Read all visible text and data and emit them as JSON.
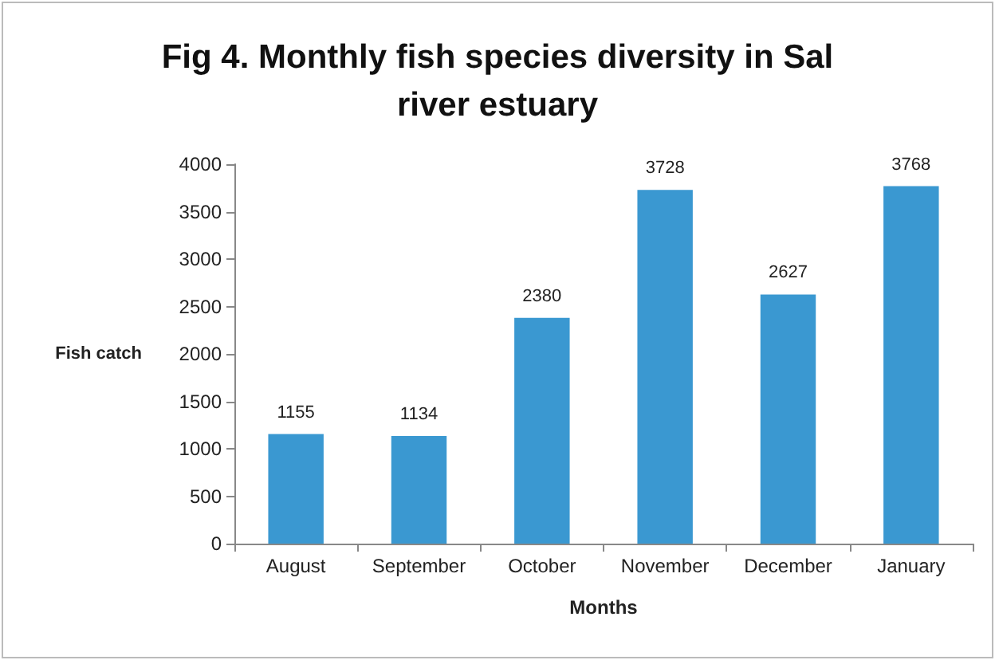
{
  "chart_data": {
    "type": "bar",
    "title": "Fig 4. Monthly fish species diversity in Sal\nriver estuary",
    "xlabel": "Months",
    "ylabel": "Fish catch",
    "categories": [
      "August",
      "September",
      "October",
      "November",
      "December",
      "January"
    ],
    "values": [
      1155,
      1134,
      2380,
      3728,
      2627,
      3768
    ],
    "color": "#3a98d1",
    "ylim": [
      0,
      4000
    ],
    "yticks": [
      0,
      500,
      1000,
      1500,
      2000,
      2500,
      3000,
      3500,
      4000
    ],
    "grid": false,
    "data_labels": true
  }
}
